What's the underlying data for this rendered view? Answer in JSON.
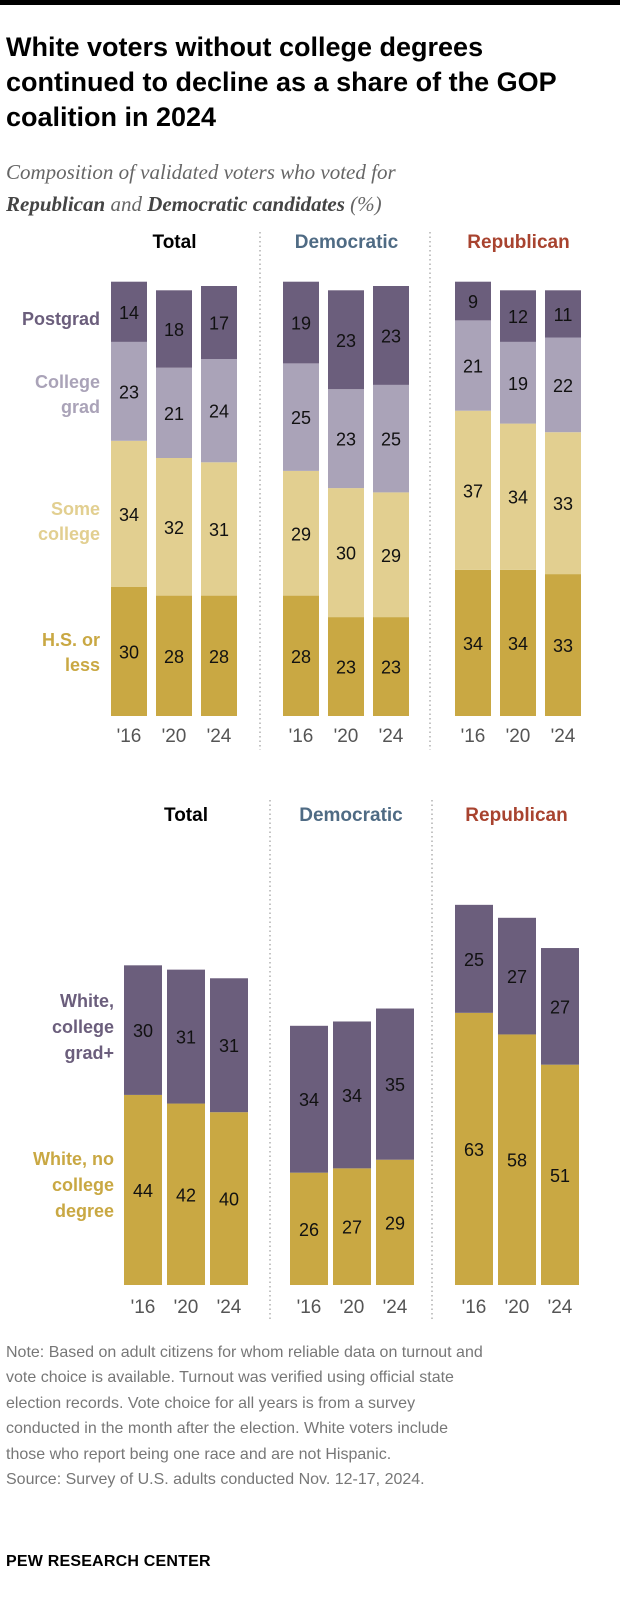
{
  "title": "White voters without college degrees continued to decline as a share of the GOP coalition in 2024",
  "subtitle": {
    "prefix": "Composition of validated voters who voted for",
    "rep": "Republican",
    "and": "and",
    "dem": "Democratic candidates",
    "unit": "(%)"
  },
  "colors": {
    "postgrad": "#6b5e7c",
    "college_grad": "#aaa3b8",
    "some_college": "#e2cf90",
    "hs_or_less": "#c9a843",
    "white_college": "#6b5e7c",
    "white_no_college": "#c9a843",
    "democratic_label": "#4f6b84",
    "republican_label": "#a8432f",
    "total_label": "#000000",
    "divider": "#888888"
  },
  "chart_data": [
    {
      "type": "bar",
      "stacked": true,
      "categories": [
        "'16",
        "'20",
        "'24"
      ],
      "panels": [
        {
          "name": "Total",
          "series": [
            {
              "name": "H.S. or less",
              "values": [
                30,
                28,
                28
              ]
            },
            {
              "name": "Some college",
              "values": [
                34,
                32,
                31
              ]
            },
            {
              "name": "College grad",
              "values": [
                23,
                21,
                24
              ]
            },
            {
              "name": "Postgrad",
              "values": [
                14,
                18,
                17
              ]
            }
          ]
        },
        {
          "name": "Democratic",
          "series": [
            {
              "name": "H.S. or less",
              "values": [
                28,
                23,
                23
              ]
            },
            {
              "name": "Some college",
              "values": [
                29,
                30,
                29
              ]
            },
            {
              "name": "College grad",
              "values": [
                25,
                23,
                25
              ]
            },
            {
              "name": "Postgrad",
              "values": [
                19,
                23,
                23
              ]
            }
          ]
        },
        {
          "name": "Republican",
          "series": [
            {
              "name": "H.S. or less",
              "values": [
                34,
                34,
                33
              ]
            },
            {
              "name": "Some college",
              "values": [
                37,
                34,
                33
              ]
            },
            {
              "name": "College grad",
              "values": [
                21,
                19,
                22
              ]
            },
            {
              "name": "Postgrad",
              "values": [
                9,
                12,
                11
              ]
            }
          ]
        }
      ],
      "row_labels": [
        {
          "series": "Postgrad",
          "lines": [
            "Postgrad"
          ]
        },
        {
          "series": "College grad",
          "lines": [
            "College",
            "grad"
          ]
        },
        {
          "series": "Some college",
          "lines": [
            "Some",
            "college"
          ]
        },
        {
          "series": "H.S. or less",
          "lines": [
            "H.S. or",
            "less"
          ]
        }
      ]
    },
    {
      "type": "bar",
      "stacked": true,
      "categories": [
        "'16",
        "'20",
        "'24"
      ],
      "panels": [
        {
          "name": "Total",
          "series": [
            {
              "name": "White, no college degree",
              "values": [
                44,
                42,
                40
              ]
            },
            {
              "name": "White, college grad+",
              "values": [
                30,
                31,
                31
              ]
            }
          ]
        },
        {
          "name": "Democratic",
          "series": [
            {
              "name": "White, no college degree",
              "values": [
                26,
                27,
                29
              ]
            },
            {
              "name": "White, college grad+",
              "values": [
                34,
                34,
                35
              ]
            }
          ]
        },
        {
          "name": "Republican",
          "series": [
            {
              "name": "White, no college degree",
              "values": [
                63,
                58,
                51
              ]
            },
            {
              "name": "White, college grad+",
              "values": [
                25,
                27,
                27
              ]
            }
          ]
        }
      ],
      "row_labels": [
        {
          "series": "White, college grad+",
          "lines": [
            "White,",
            "college",
            "grad+"
          ]
        },
        {
          "series": "White, no college degree",
          "lines": [
            "White, no",
            "college",
            "degree"
          ]
        }
      ]
    }
  ],
  "note_lines": [
    "Note: Based on adult citizens for whom reliable data on turnout and",
    "vote choice is available. Turnout was verified using official state",
    "election records. Vote choice for all years is from a survey",
    "conducted in the month after the election. White voters include",
    "those who report being one race and are not Hispanic."
  ],
  "source": "Source: Survey of U.S. adults conducted Nov. 12-17, 2024.",
  "logo": "PEW RESEARCH CENTER"
}
